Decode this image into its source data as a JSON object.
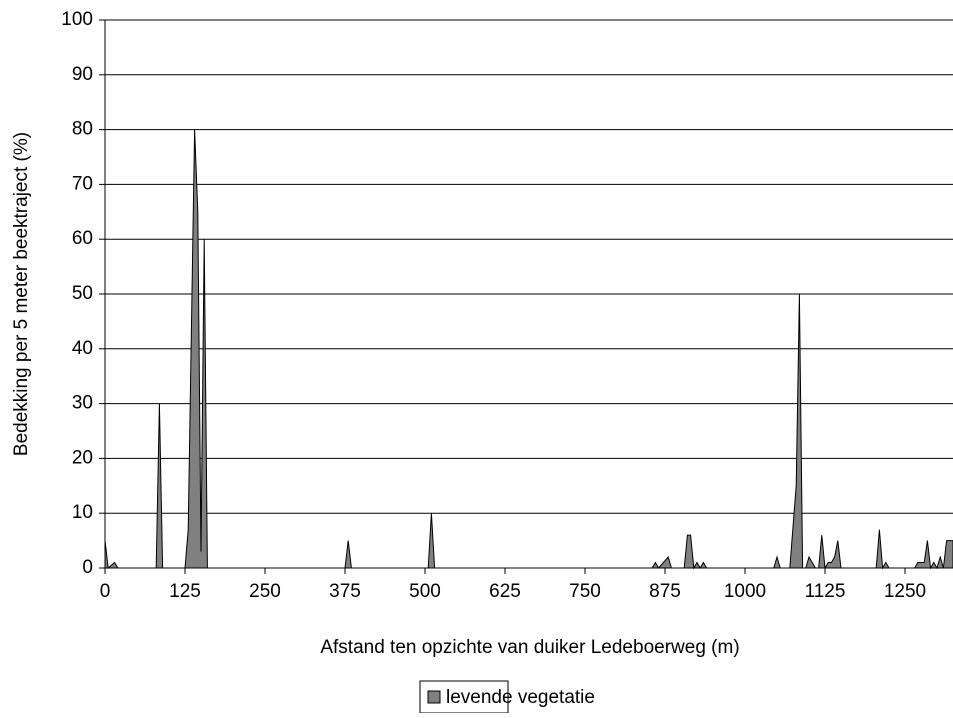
{
  "chart_data": {
    "type": "area",
    "x_label": "Afstand ten opzichte van duiker Ledeboerweg (m)",
    "y_label": "Bedekking per 5 meter beektraject (%)",
    "x": [
      0,
      5,
      15,
      20,
      80,
      85,
      90,
      125,
      130,
      140,
      145,
      150,
      155,
      160,
      375,
      380,
      385,
      505,
      510,
      515,
      855,
      860,
      865,
      880,
      885,
      905,
      910,
      915,
      920,
      925,
      930,
      935,
      940,
      1045,
      1050,
      1055,
      1070,
      1080,
      1085,
      1090,
      1095,
      1100,
      1105,
      1110,
      1115,
      1120,
      1125,
      1130,
      1135,
      1140,
      1145,
      1150,
      1205,
      1210,
      1215,
      1220,
      1225,
      1265,
      1270,
      1280,
      1285,
      1290,
      1295,
      1300,
      1305,
      1310,
      1315,
      1320,
      1325
    ],
    "series": [
      {
        "name": "levende vegetatie",
        "color": "#808080",
        "values": [
          5,
          0,
          1,
          0,
          0,
          30,
          0,
          0,
          7,
          80,
          65,
          3,
          60,
          0,
          0,
          5,
          0,
          0,
          10,
          0,
          0,
          1,
          0,
          2,
          0,
          0,
          6,
          6,
          0,
          1,
          0,
          1,
          0,
          0,
          2,
          0,
          0,
          15,
          50,
          0,
          0,
          2,
          1,
          0,
          0,
          6,
          0,
          1,
          1,
          2,
          5,
          0,
          0,
          7,
          0,
          1,
          0,
          0,
          1,
          1,
          5,
          0,
          1,
          0,
          2,
          0,
          5,
          5,
          5
        ]
      }
    ],
    "xlim": [
      0,
      1325
    ],
    "ylim": [
      0,
      100
    ],
    "xticks": [
      0,
      125,
      250,
      375,
      500,
      625,
      750,
      875,
      1000,
      1125,
      1250
    ],
    "yticks": [
      0,
      10,
      20,
      30,
      40,
      50,
      60,
      70,
      80,
      90,
      100
    ],
    "grid": true
  }
}
